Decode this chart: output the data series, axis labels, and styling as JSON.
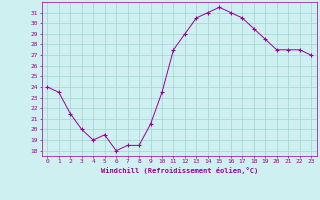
{
  "x": [
    0,
    1,
    2,
    3,
    4,
    5,
    6,
    7,
    8,
    9,
    10,
    11,
    12,
    13,
    14,
    15,
    16,
    17,
    18,
    19,
    20,
    21,
    22,
    23
  ],
  "y": [
    24,
    23.5,
    21.5,
    20,
    19,
    19.5,
    18,
    18.5,
    18.5,
    20.5,
    23.5,
    27.5,
    29,
    30.5,
    31,
    31.5,
    31,
    30.5,
    29.5,
    28.5,
    27.5,
    27.5,
    27.5,
    27
  ],
  "line_color": "#990099",
  "marker": "+",
  "marker_color": "#990099",
  "bg_color": "#cff0f0",
  "grid_color": "#99cccc",
  "xlabel": "Windchill (Refroidissement éolien,°C)",
  "xlabel_color": "#990099",
  "tick_color": "#990099",
  "ylim": [
    17.5,
    32
  ],
  "xlim": [
    -0.5,
    23.5
  ],
  "yticks": [
    18,
    19,
    20,
    21,
    22,
    23,
    24,
    25,
    26,
    27,
    28,
    29,
    30,
    31
  ],
  "xticks": [
    0,
    1,
    2,
    3,
    4,
    5,
    6,
    7,
    8,
    9,
    10,
    11,
    12,
    13,
    14,
    15,
    16,
    17,
    18,
    19,
    20,
    21,
    22,
    23
  ],
  "xtick_labels": [
    "0",
    "1",
    "2",
    "3",
    "4",
    "5",
    "6",
    "7",
    "8",
    "9",
    "10",
    "11",
    "12",
    "13",
    "14",
    "15",
    "16",
    "17",
    "18",
    "19",
    "20",
    "21",
    "22",
    "23"
  ]
}
